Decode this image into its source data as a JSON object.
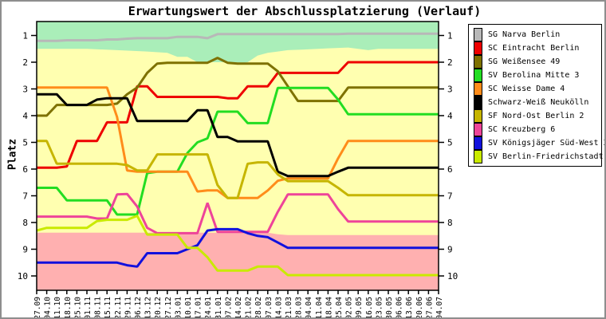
{
  "chart_data": {
    "type": "line",
    "title": "Erwartungswert der Abschlussplatzierung (Verlauf)",
    "ylabel": "Platz",
    "plot_bg": "#ffffb0",
    "y_ticks": [
      1,
      2,
      3,
      4,
      5,
      6,
      7,
      8,
      9,
      10
    ],
    "y_axis_inverted": true,
    "ylim": [
      0.5,
      10.5
    ],
    "legend_position": "right",
    "grid": false,
    "x_labels": [
      "27.09",
      "04.10",
      "11.10",
      "18.10",
      "25.10",
      "01.11",
      "08.11",
      "15.11",
      "22.11",
      "29.11",
      "06.12",
      "13.12",
      "20.12",
      "27.12",
      "03.01",
      "10.01",
      "17.01",
      "24.01",
      "31.01",
      "07.02",
      "14.02",
      "21.02",
      "28.02",
      "07.03",
      "14.03",
      "21.03",
      "28.03",
      "04.04",
      "11.04",
      "18.04",
      "25.04",
      "02.05",
      "09.05",
      "16.05",
      "23.05",
      "30.05",
      "06.06",
      "13.06",
      "20.06",
      "27.06",
      "04.07"
    ],
    "zones": {
      "promotion": {
        "color": "#aaeeb9",
        "boundary": [
          [
            0,
            1.5
          ],
          [
            5,
            1.5
          ],
          [
            8,
            1.55
          ],
          [
            11,
            1.6
          ],
          [
            13,
            1.65
          ],
          [
            14,
            1.8
          ],
          [
            15,
            1.8
          ],
          [
            16,
            2.0
          ],
          [
            19,
            2.0
          ],
          [
            20,
            2.05
          ],
          [
            21,
            2.0
          ],
          [
            22,
            1.75
          ],
          [
            23,
            1.65
          ],
          [
            24,
            1.6
          ],
          [
            25,
            1.55
          ],
          [
            27,
            1.52
          ],
          [
            29,
            1.48
          ],
          [
            31,
            1.45
          ],
          [
            32,
            1.5
          ],
          [
            33,
            1.55
          ],
          [
            34,
            1.5
          ],
          [
            40,
            1.5
          ]
        ]
      },
      "relegation": {
        "color": "#ffb0b0",
        "boundary": [
          [
            0,
            8.38
          ],
          [
            23,
            8.38
          ],
          [
            24,
            8.44
          ],
          [
            25,
            8.47
          ],
          [
            40,
            8.47
          ]
        ]
      }
    },
    "series": [
      {
        "name": "SG Narva Berlin",
        "color": "#b8b8b8",
        "values": [
          1.2,
          1.2,
          1.2,
          1.18,
          1.18,
          1.18,
          1.18,
          1.15,
          1.15,
          1.12,
          1.1,
          1.1,
          1.1,
          1.1,
          1.05,
          1.05,
          1.05,
          1.1,
          0.95,
          0.95,
          0.95,
          0.95,
          0.95,
          0.95,
          0.95,
          0.95,
          0.95,
          0.95,
          0.95,
          0.95,
          0.95,
          0.93,
          0.93,
          0.93,
          0.93,
          0.93,
          0.93,
          0.93,
          0.93,
          0.93,
          0.93
        ]
      },
      {
        "name": "SC Eintracht Berlin",
        "color": "#ee0000",
        "values": [
          5.95,
          5.95,
          5.95,
          5.9,
          4.95,
          4.95,
          4.95,
          4.25,
          4.25,
          4.25,
          2.9,
          2.9,
          3.3,
          3.3,
          3.3,
          3.3,
          3.3,
          3.3,
          3.3,
          3.35,
          3.35,
          2.9,
          2.9,
          2.9,
          2.4,
          2.4,
          2.4,
          2.4,
          2.4,
          2.4,
          2.4,
          2.0,
          2.0,
          2.0,
          2.0,
          2.0,
          2.0,
          2.0,
          2.0,
          2.0,
          2.0
        ]
      },
      {
        "name": "SG Weißensee 49",
        "color": "#7e7100",
        "values": [
          4.0,
          4.0,
          3.6,
          3.6,
          3.6,
          3.6,
          3.6,
          3.6,
          3.55,
          3.2,
          2.95,
          2.4,
          2.05,
          2.02,
          2.02,
          2.02,
          2.02,
          2.02,
          1.84,
          2.02,
          2.05,
          2.05,
          2.05,
          2.05,
          2.34,
          2.9,
          3.45,
          3.45,
          3.45,
          3.45,
          3.45,
          2.95,
          2.95,
          2.95,
          2.95,
          2.95,
          2.95,
          2.95,
          2.95,
          2.95,
          2.95
        ]
      },
      {
        "name": "SV Berolina Mitte 3",
        "color": "#22dd22",
        "values": [
          6.7,
          6.7,
          6.7,
          7.17,
          7.17,
          7.17,
          7.17,
          7.17,
          7.7,
          7.7,
          7.7,
          6.15,
          6.1,
          6.1,
          6.1,
          5.4,
          5.0,
          4.85,
          3.85,
          3.85,
          3.85,
          4.28,
          4.28,
          4.28,
          2.96,
          2.96,
          2.96,
          2.96,
          2.96,
          2.96,
          3.4,
          3.95,
          3.95,
          3.95,
          3.95,
          3.95,
          3.95,
          3.95,
          3.95,
          3.95,
          3.95
        ]
      },
      {
        "name": "SC Weisse Dame 4",
        "color": "#ff8c1a",
        "values": [
          2.95,
          2.95,
          2.95,
          2.95,
          2.95,
          2.95,
          2.95,
          2.95,
          4.05,
          6.05,
          6.1,
          6.1,
          6.1,
          6.1,
          6.1,
          6.1,
          6.84,
          6.8,
          6.8,
          7.08,
          7.08,
          7.08,
          7.08,
          6.8,
          6.44,
          6.35,
          6.35,
          6.35,
          6.35,
          6.35,
          5.6,
          4.95,
          4.95,
          4.95,
          4.95,
          4.95,
          4.95,
          4.95,
          4.95,
          4.95,
          4.95
        ]
      },
      {
        "name": "Schwarz-Weiß Neukölln",
        "color": "#000000",
        "values": [
          3.2,
          3.2,
          3.2,
          3.6,
          3.6,
          3.6,
          3.4,
          3.35,
          3.35,
          3.35,
          4.2,
          4.2,
          4.2,
          4.2,
          4.2,
          4.2,
          3.8,
          3.8,
          4.8,
          4.8,
          4.96,
          4.96,
          4.96,
          4.96,
          6.1,
          6.26,
          6.26,
          6.26,
          6.26,
          6.26,
          6.1,
          5.95,
          5.95,
          5.95,
          5.95,
          5.95,
          5.95,
          5.95,
          5.95,
          5.95,
          5.95
        ]
      },
      {
        "name": "SF Nord-Ost Berlin 2",
        "color": "#c6b500",
        "values": [
          4.95,
          4.95,
          5.8,
          5.8,
          5.8,
          5.8,
          5.8,
          5.8,
          5.8,
          5.85,
          6.05,
          6.05,
          5.45,
          5.45,
          5.45,
          5.45,
          5.45,
          5.45,
          6.6,
          7.08,
          7.08,
          5.8,
          5.75,
          5.75,
          6.2,
          6.45,
          6.45,
          6.45,
          6.45,
          6.45,
          6.7,
          6.98,
          6.98,
          6.98,
          6.98,
          6.98,
          6.98,
          6.98,
          6.98,
          6.98,
          6.98
        ]
      },
      {
        "name": "SC Kreuzberg 6",
        "color": "#ee4499",
        "values": [
          7.78,
          7.78,
          7.78,
          7.78,
          7.78,
          7.78,
          7.85,
          7.85,
          6.95,
          6.93,
          7.4,
          8.2,
          8.4,
          8.4,
          8.4,
          8.4,
          8.4,
          7.27,
          8.35,
          8.35,
          8.35,
          8.35,
          8.35,
          8.35,
          7.6,
          6.95,
          6.95,
          6.95,
          6.95,
          6.95,
          7.5,
          7.96,
          7.96,
          7.96,
          7.96,
          7.96,
          7.96,
          7.96,
          7.96,
          7.96,
          7.96
        ]
      },
      {
        "name": "SV Königsjäger Süd-West 3",
        "color": "#1111dd",
        "values": [
          9.5,
          9.5,
          9.5,
          9.5,
          9.5,
          9.5,
          9.5,
          9.5,
          9.5,
          9.6,
          9.65,
          9.15,
          9.15,
          9.15,
          9.15,
          9.0,
          8.85,
          8.3,
          8.25,
          8.25,
          8.25,
          8.4,
          8.5,
          8.55,
          8.75,
          8.95,
          8.95,
          8.95,
          8.95,
          8.95,
          8.95,
          8.95,
          8.95,
          8.95,
          8.95,
          8.95,
          8.95,
          8.95,
          8.95,
          8.95,
          8.95
        ]
      },
      {
        "name": "SV Berlin-Friedrichstadt",
        "color": "#c9ea00",
        "values": [
          8.3,
          8.2,
          8.2,
          8.2,
          8.2,
          8.2,
          7.95,
          7.9,
          7.9,
          7.9,
          7.75,
          8.45,
          8.45,
          8.45,
          8.45,
          8.95,
          8.95,
          9.3,
          9.8,
          9.8,
          9.8,
          9.8,
          9.65,
          9.65,
          9.65,
          9.97,
          9.97,
          9.97,
          9.97,
          9.97,
          9.97,
          9.97,
          9.97,
          9.97,
          9.97,
          9.97,
          9.97,
          9.97,
          9.97,
          9.97,
          9.97
        ]
      }
    ]
  }
}
